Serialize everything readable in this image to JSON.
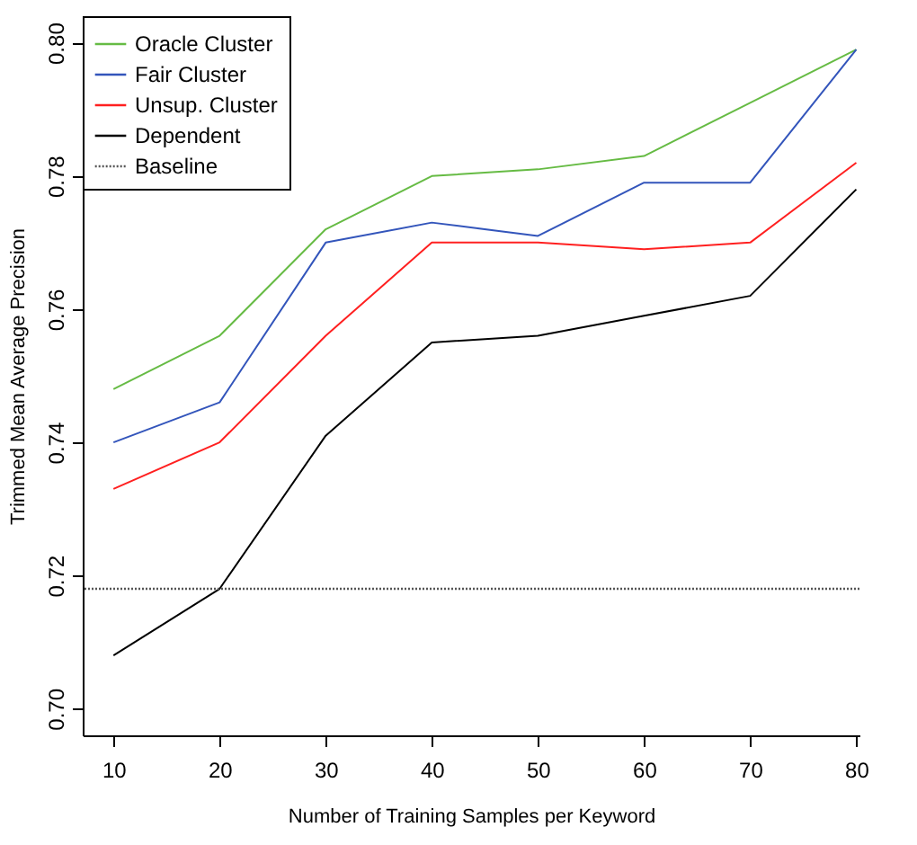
{
  "chart_data": {
    "type": "line",
    "xlabel": "Number of Training Samples per Keyword",
    "ylabel": "Trimmed Mean Average Precision",
    "x": [
      10,
      20,
      30,
      40,
      50,
      60,
      70,
      80
    ],
    "series": [
      {
        "name": "Oracle Cluster",
        "color": "#66bb44",
        "values": [
          0.748,
          0.756,
          0.772,
          0.78,
          0.781,
          0.783,
          0.791,
          0.799
        ]
      },
      {
        "name": "Fair Cluster",
        "color": "#3355bb",
        "values": [
          0.74,
          0.746,
          0.77,
          0.773,
          0.771,
          0.779,
          0.779,
          0.799
        ]
      },
      {
        "name": "Unsup. Cluster",
        "color": "#ff2020",
        "values": [
          0.733,
          0.74,
          0.756,
          0.77,
          0.77,
          0.769,
          0.77,
          0.782
        ]
      },
      {
        "name": "Dependent",
        "color": "#000000",
        "values": [
          0.708,
          0.718,
          0.741,
          0.755,
          0.756,
          0.759,
          0.762,
          0.778
        ]
      }
    ],
    "ref_lines": [
      {
        "axis": "y",
        "value": 0.718,
        "label": "Baseline",
        "color": "#555555",
        "line_style": "dotted"
      }
    ],
    "xlim": [
      7.1,
      80.3
    ],
    "xticks": [
      10,
      20,
      30,
      40,
      50,
      60,
      70,
      80
    ],
    "ylim": [
      0.696,
      0.804
    ],
    "yticks": [
      {
        "value": 0.7,
        "label": "0.70"
      },
      0.72,
      0.74,
      0.76,
      0.78,
      {
        "value": 0.8,
        "label": "0.80"
      }
    ],
    "legend": "top left",
    "grid": false,
    "marker": "none",
    "line_style": "solid"
  }
}
